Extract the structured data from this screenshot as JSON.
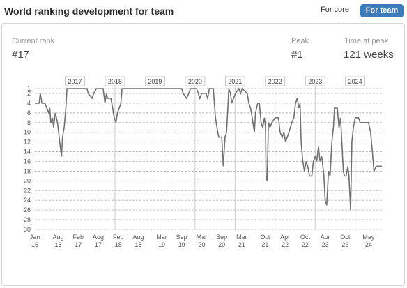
{
  "header": {
    "title": "World ranking development for team",
    "toggle_core": "For core",
    "toggle_team": "For team"
  },
  "stats": {
    "current_rank_label": "Current rank",
    "current_rank_value": "#17",
    "peak_label": "Peak",
    "peak_value": "#1",
    "time_at_peak_label": "Time at peak",
    "time_at_peak_value": "121 weeks"
  },
  "colors": {
    "line": "#707070",
    "grid": "#b0b0b0",
    "accent": "#3d7ab8"
  },
  "chart_data": {
    "type": "line",
    "title": "",
    "xlabel": "",
    "ylabel": "",
    "y_reversed": true,
    "ylim": [
      1,
      30
    ],
    "xlim": [
      "2016-01",
      "2024-09"
    ],
    "y_ticks": [
      1,
      2,
      4,
      6,
      8,
      10,
      12,
      14,
      16,
      18,
      20,
      22,
      24,
      26,
      28,
      30
    ],
    "x_ticks": [
      {
        "x": "2016-01",
        "label": [
          "Jan",
          "16"
        ]
      },
      {
        "x": "2016-08",
        "label": [
          "Aug",
          "16"
        ]
      },
      {
        "x": "2017-02",
        "label": [
          "Feb",
          "17"
        ]
      },
      {
        "x": "2017-08",
        "label": [
          "Aug",
          "17"
        ]
      },
      {
        "x": "2018-02",
        "label": [
          "Feb",
          "18"
        ]
      },
      {
        "x": "2018-08",
        "label": [
          "Aug",
          "18"
        ]
      },
      {
        "x": "2019-03",
        "label": [
          "Mar",
          "19"
        ]
      },
      {
        "x": "2019-09",
        "label": [
          "Sep",
          "19"
        ]
      },
      {
        "x": "2020-03",
        "label": [
          "Mar",
          "20"
        ]
      },
      {
        "x": "2020-09",
        "label": [
          "Sep",
          "20"
        ]
      },
      {
        "x": "2021-03",
        "label": [
          "Mar",
          "21"
        ]
      },
      {
        "x": "2021-10",
        "label": [
          "Oct",
          "21"
        ]
      },
      {
        "x": "2022-04",
        "label": [
          "Apr",
          "22"
        ]
      },
      {
        "x": "2022-10",
        "label": [
          "Oct",
          "22"
        ]
      },
      {
        "x": "2023-04",
        "label": [
          "Apr",
          "23"
        ]
      },
      {
        "x": "2023-10",
        "label": [
          "Oct",
          "23"
        ]
      },
      {
        "x": "2024-05",
        "label": [
          "May",
          "24"
        ]
      }
    ],
    "year_markers": [
      {
        "x": "2017-01",
        "label": "2017"
      },
      {
        "x": "2018-01",
        "label": "2018"
      },
      {
        "x": "2019-01",
        "label": "2019"
      },
      {
        "x": "2020-01",
        "label": "2020"
      },
      {
        "x": "2021-01",
        "label": "2021"
      },
      {
        "x": "2022-01",
        "label": "2022"
      },
      {
        "x": "2023-01",
        "label": "2023"
      },
      {
        "x": "2024-01",
        "label": "2024"
      }
    ],
    "series": [
      {
        "values": [
          [
            "2016-01-01",
            4
          ],
          [
            "2016-02-10",
            4
          ],
          [
            "2016-02-20",
            2
          ],
          [
            "2016-03-05",
            4
          ],
          [
            "2016-04-01",
            4
          ],
          [
            "2016-05-05",
            6
          ],
          [
            "2016-05-15",
            5
          ],
          [
            "2016-05-25",
            8
          ],
          [
            "2016-06-10",
            7
          ],
          [
            "2016-06-20",
            9
          ],
          [
            "2016-07-05",
            6
          ],
          [
            "2016-07-25",
            8
          ],
          [
            "2016-08-05",
            10
          ],
          [
            "2016-08-20",
            13
          ],
          [
            "2016-09-01",
            15
          ],
          [
            "2016-09-10",
            11
          ],
          [
            "2016-09-25",
            9
          ],
          [
            "2016-10-10",
            5
          ],
          [
            "2016-10-20",
            1
          ],
          [
            "2017-01-01",
            1
          ],
          [
            "2017-04-20",
            1
          ],
          [
            "2017-05-01",
            2
          ],
          [
            "2017-06-05",
            3
          ],
          [
            "2017-06-20",
            2
          ],
          [
            "2017-07-15",
            1
          ],
          [
            "2017-09-15",
            1
          ],
          [
            "2017-10-01",
            4
          ],
          [
            "2017-10-15",
            2
          ],
          [
            "2017-10-25",
            3
          ],
          [
            "2017-11-25",
            3
          ],
          [
            "2017-12-10",
            5
          ],
          [
            "2017-12-25",
            7
          ],
          [
            "2018-01-10",
            8
          ],
          [
            "2018-01-25",
            6
          ],
          [
            "2018-02-10",
            5
          ],
          [
            "2018-02-25",
            4
          ],
          [
            "2018-03-05",
            1
          ],
          [
            "2018-12-30",
            1
          ],
          [
            "2019-09-01",
            1
          ],
          [
            "2019-09-15",
            2
          ],
          [
            "2019-10-15",
            3
          ],
          [
            "2019-11-05",
            2
          ],
          [
            "2019-11-20",
            1
          ],
          [
            "2020-01-15",
            1
          ],
          [
            "2020-02-01",
            2
          ],
          [
            "2020-02-15",
            3
          ],
          [
            "2020-03-01",
            2
          ],
          [
            "2020-04-10",
            2
          ],
          [
            "2020-04-25",
            3
          ],
          [
            "2020-05-10",
            1
          ],
          [
            "2020-06-15",
            1
          ],
          [
            "2020-07-05",
            7
          ],
          [
            "2020-07-25",
            10
          ],
          [
            "2020-08-05",
            11
          ],
          [
            "2020-09-01",
            11
          ],
          [
            "2020-09-15",
            17
          ],
          [
            "2020-10-01",
            11
          ],
          [
            "2020-10-15",
            10
          ],
          [
            "2020-11-05",
            1
          ],
          [
            "2020-11-20",
            2
          ],
          [
            "2020-12-01",
            4
          ],
          [
            "2021-01-05",
            2
          ],
          [
            "2021-02-05",
            1
          ],
          [
            "2021-02-20",
            2
          ],
          [
            "2021-03-05",
            1
          ],
          [
            "2021-04-20",
            2
          ],
          [
            "2021-05-05",
            4
          ],
          [
            "2021-05-20",
            5
          ],
          [
            "2021-06-05",
            7
          ],
          [
            "2021-06-25",
            10
          ],
          [
            "2021-07-05",
            6
          ],
          [
            "2021-07-25",
            4
          ],
          [
            "2021-08-10",
            4
          ],
          [
            "2021-08-25",
            8
          ],
          [
            "2021-09-10",
            9
          ],
          [
            "2021-09-25",
            7
          ],
          [
            "2021-10-05",
            9
          ],
          [
            "2021-10-10",
            19
          ],
          [
            "2021-10-20",
            20
          ],
          [
            "2021-11-01",
            8
          ],
          [
            "2021-11-15",
            9
          ],
          [
            "2021-12-01",
            8
          ],
          [
            "2022-01-01",
            7
          ],
          [
            "2022-02-01",
            7
          ],
          [
            "2022-02-15",
            10
          ],
          [
            "2022-03-05",
            11
          ],
          [
            "2022-03-20",
            10
          ],
          [
            "2022-04-05",
            12
          ],
          [
            "2022-04-20",
            11
          ],
          [
            "2022-05-05",
            10
          ],
          [
            "2022-06-01",
            8
          ],
          [
            "2022-06-20",
            7
          ],
          [
            "2022-07-05",
            4
          ],
          [
            "2022-07-20",
            3
          ],
          [
            "2022-08-05",
            5
          ],
          [
            "2022-08-15",
            4
          ],
          [
            "2022-08-25",
            12
          ],
          [
            "2022-09-10",
            16
          ],
          [
            "2022-09-25",
            18
          ],
          [
            "2022-10-10",
            16
          ],
          [
            "2022-10-25",
            17
          ],
          [
            "2022-11-10",
            19
          ],
          [
            "2022-12-01",
            19
          ],
          [
            "2022-12-15",
            16
          ],
          [
            "2023-01-01",
            15
          ],
          [
            "2023-01-15",
            16
          ],
          [
            "2023-02-01",
            13
          ],
          [
            "2023-02-15",
            16
          ],
          [
            "2023-03-01",
            15
          ],
          [
            "2023-03-20",
            19
          ],
          [
            "2023-04-01",
            24
          ],
          [
            "2023-04-15",
            25
          ],
          [
            "2023-05-01",
            18
          ],
          [
            "2023-05-15",
            19
          ],
          [
            "2023-06-01",
            12
          ],
          [
            "2023-06-15",
            9
          ],
          [
            "2023-06-25",
            5
          ],
          [
            "2023-07-20",
            5
          ],
          [
            "2023-08-05",
            9
          ],
          [
            "2023-08-20",
            7
          ],
          [
            "2023-09-01",
            12
          ],
          [
            "2023-09-15",
            18
          ],
          [
            "2023-09-25",
            19
          ],
          [
            "2023-10-10",
            19
          ],
          [
            "2023-10-25",
            17
          ],
          [
            "2023-11-05",
            19
          ],
          [
            "2023-11-20",
            26
          ],
          [
            "2023-12-01",
            12
          ],
          [
            "2023-12-15",
            9
          ],
          [
            "2024-01-01",
            7
          ],
          [
            "2024-02-01",
            7
          ],
          [
            "2024-02-15",
            8
          ],
          [
            "2024-05-01",
            8
          ],
          [
            "2024-05-20",
            10
          ],
          [
            "2024-06-05",
            14
          ],
          [
            "2024-06-20",
            18
          ],
          [
            "2024-07-10",
            17
          ],
          [
            "2024-09-01",
            17
          ]
        ]
      }
    ]
  }
}
